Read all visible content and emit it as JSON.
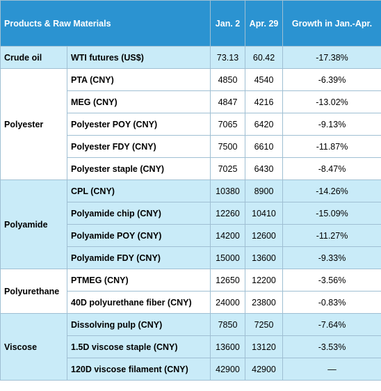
{
  "table": {
    "header": [
      "Products & Raw Materials",
      "Jan. 2",
      "Apr. 29",
      "Growth in Jan.-Apr."
    ],
    "groups": [
      {
        "name": "Crude oil",
        "rows": [
          [
            "WTI futures (US$)",
            "73.13",
            "60.42",
            "-17.38%"
          ]
        ]
      },
      {
        "name": "Polyester",
        "rows": [
          [
            "PTA (CNY)",
            "4850",
            "4540",
            "-6.39%"
          ],
          [
            "MEG (CNY)",
            "4847",
            "4216",
            "-13.02%"
          ],
          [
            "Polyester POY (CNY)",
            "7065",
            "6420",
            "-9.13%"
          ],
          [
            "Polyester FDY (CNY)",
            "7500",
            "6610",
            "-11.87%"
          ],
          [
            "Polyester staple (CNY)",
            "7025",
            "6430",
            "-8.47%"
          ]
        ]
      },
      {
        "name": "Polyamide",
        "rows": [
          [
            "CPL (CNY)",
            "10380",
            "8900",
            "-14.26%"
          ],
          [
            "Polyamide chip (CNY)",
            "12260",
            "10410",
            "-15.09%"
          ],
          [
            "Polyamide POY (CNY)",
            "14200",
            "12600",
            "-11.27%"
          ],
          [
            "Polyamide FDY (CNY)",
            "15000",
            "13600",
            "-9.33%"
          ]
        ]
      },
      {
        "name": "Polyurethane",
        "rows": [
          [
            "PTMEG (CNY)",
            "12650",
            "12200",
            "-3.56%"
          ],
          [
            "40D polyurethane fiber (CNY)",
            "24000",
            "23800",
            "-0.83%"
          ]
        ]
      },
      {
        "name": "Viscose",
        "rows": [
          [
            "Dissolving pulp (CNY)",
            "7850",
            "7250",
            "-7.64%"
          ],
          [
            "1.5D viscose staple (CNY)",
            "13600",
            "13120",
            "-3.53%"
          ],
          [
            "120D viscose filament (CNY)",
            "42900",
            "42900",
            "—"
          ]
        ]
      }
    ]
  }
}
